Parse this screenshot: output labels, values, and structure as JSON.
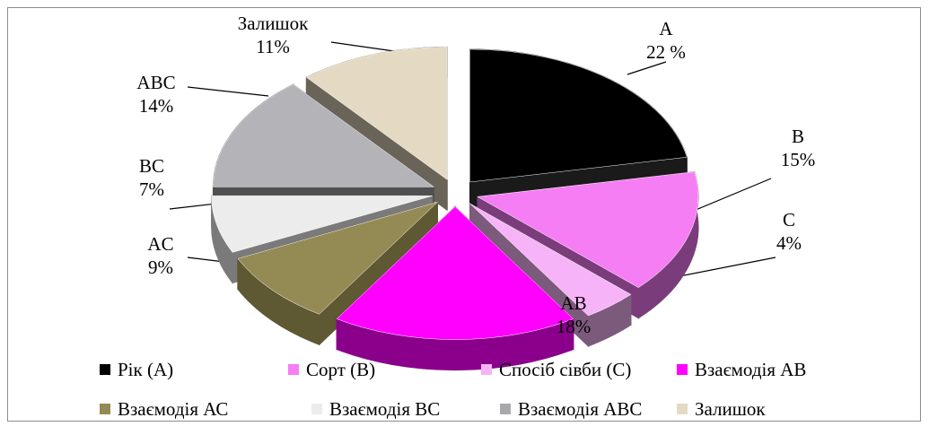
{
  "chart_data": {
    "type": "pie",
    "slices": [
      {
        "label": "A",
        "percent_text": "22 %",
        "value": 22,
        "legend": "Рік (А)",
        "color": "#000000",
        "side": "#1a1a1a"
      },
      {
        "label": "B",
        "percent_text": "15%",
        "value": 15,
        "legend": "Сорт (В)",
        "color": "#f57ef5",
        "side": "#7a3c7a"
      },
      {
        "label": "C",
        "percent_text": "4%",
        "value": 4,
        "legend": "Спосіб сівби (С)",
        "color": "#f7b3f7",
        "side": "#7c5a7c"
      },
      {
        "label": "AB",
        "percent_text": "18%",
        "value": 18,
        "legend": "Взаємодія АВ",
        "color": "#ff00ff",
        "side": "#8a008a"
      },
      {
        "label": "AC",
        "percent_text": "9%",
        "value": 9,
        "legend": "Взаємодія АС",
        "color": "#948a54",
        "side": "#5e5833"
      },
      {
        "label": "BC",
        "percent_text": "7%",
        "value": 7,
        "legend": "Взаємодія ВС",
        "color": "#ececec",
        "side": "#7a7a7a"
      },
      {
        "label": "ABC",
        "percent_text": "14%",
        "value": 14,
        "legend": "Взаємодія АВС",
        "color": "#b4b4b8",
        "side": "#505050"
      },
      {
        "label": "Залишок",
        "percent_text": "11%",
        "value": 11,
        "legend": "Залишок",
        "color": "#e4dac4",
        "side": "#6a6458"
      }
    ],
    "legend_placement": "bottom"
  }
}
